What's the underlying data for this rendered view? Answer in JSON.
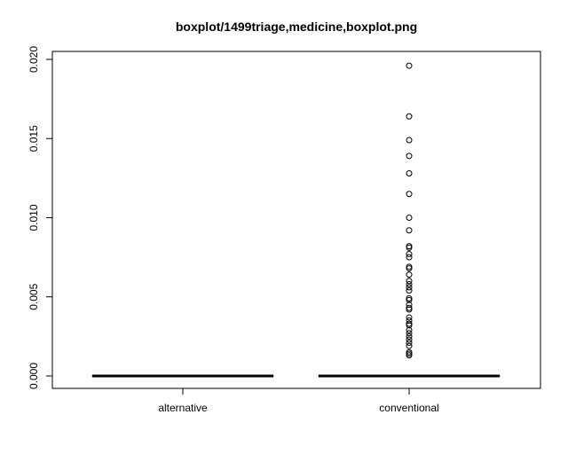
{
  "chart_data": {
    "type": "boxplot",
    "title": "boxplot/1499triage,medicine,boxplot.png",
    "xlabel": "",
    "ylabel": "",
    "ylim": [
      -0.0008,
      0.0205
    ],
    "yticks": [
      0.0,
      0.005,
      0.01,
      0.015,
      0.02
    ],
    "ytick_labels": [
      "0.000",
      "0.005",
      "0.010",
      "0.015",
      "0.020"
    ],
    "categories": [
      "alternative",
      "conventional"
    ],
    "series": [
      {
        "category": "alternative",
        "min": 0,
        "q1": 0,
        "median": 0,
        "q3": 0,
        "max": 0,
        "outliers": []
      },
      {
        "category": "conventional",
        "min": 0,
        "q1": 0,
        "median": 0,
        "q3": 0,
        "max": 0,
        "outliers": [
          0.0196,
          0.0164,
          0.0149,
          0.0139,
          0.0128,
          0.0115,
          0.01,
          0.0092,
          0.0082,
          0.0081,
          0.0077,
          0.0075,
          0.0069,
          0.0068,
          0.0064,
          0.006,
          0.0058,
          0.0056,
          0.0054,
          0.0049,
          0.0048,
          0.0045,
          0.0043,
          0.0042,
          0.0037,
          0.0035,
          0.0033,
          0.0032,
          0.0029,
          0.0027,
          0.0025,
          0.0023,
          0.0021,
          0.0019,
          0.0015,
          0.0014,
          0.0013
        ]
      }
    ],
    "grid": false,
    "legend": "none"
  }
}
